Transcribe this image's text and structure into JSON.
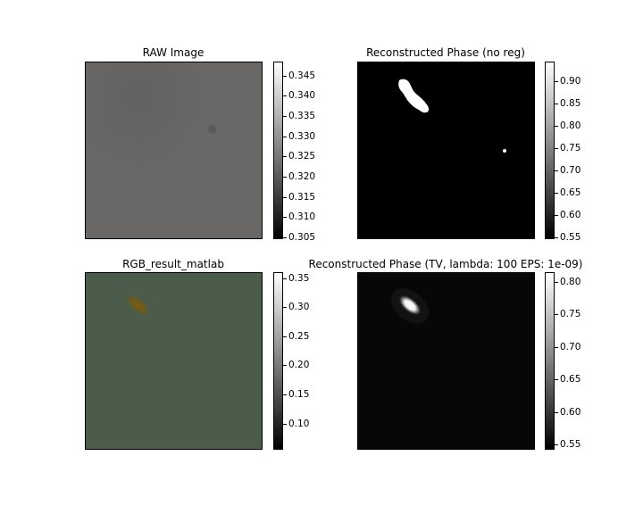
{
  "panels": [
    {
      "title": "RAW Image",
      "colorbar_ticks": [
        "0.345",
        "0.340",
        "0.335",
        "0.330",
        "0.325",
        "0.320",
        "0.315",
        "0.310",
        "0.305"
      ],
      "colorbar_range": [
        0.3045,
        0.3485
      ]
    },
    {
      "title": "Reconstructed Phase (no reg)",
      "colorbar_ticks": [
        "0.90",
        "0.85",
        "0.80",
        "0.75",
        "0.70",
        "0.65",
        "0.60",
        "0.55"
      ],
      "colorbar_range": [
        0.545,
        0.945
      ]
    },
    {
      "title": "RGB_result_matlab",
      "colorbar_ticks": [
        "0.35",
        "0.30",
        "0.25",
        "0.20",
        "0.15",
        "0.10"
      ],
      "colorbar_range": [
        0.055,
        0.36
      ]
    },
    {
      "title": "Reconstructed Phase (TV, lambda: 100 EPS: 1e-09)",
      "colorbar_ticks": [
        "0.80",
        "0.75",
        "0.70",
        "0.65",
        "0.60",
        "0.55"
      ],
      "colorbar_range": [
        0.542,
        0.815
      ]
    }
  ],
  "chart_data": [
    {
      "type": "heatmap",
      "title": "RAW Image",
      "colormap": "gray",
      "zlim": [
        0.3045,
        0.3485
      ]
    },
    {
      "type": "heatmap",
      "title": "Reconstructed Phase (no reg)",
      "colormap": "gray",
      "zlim": [
        0.545,
        0.945
      ]
    },
    {
      "type": "heatmap",
      "title": "RGB_result_matlab",
      "colormap": "gray",
      "zlim": [
        0.055,
        0.36
      ]
    },
    {
      "type": "heatmap",
      "title": "Reconstructed Phase (TV, lambda: 100 EPS: 1e-09)",
      "colormap": "gray",
      "zlim": [
        0.542,
        0.815
      ]
    }
  ]
}
